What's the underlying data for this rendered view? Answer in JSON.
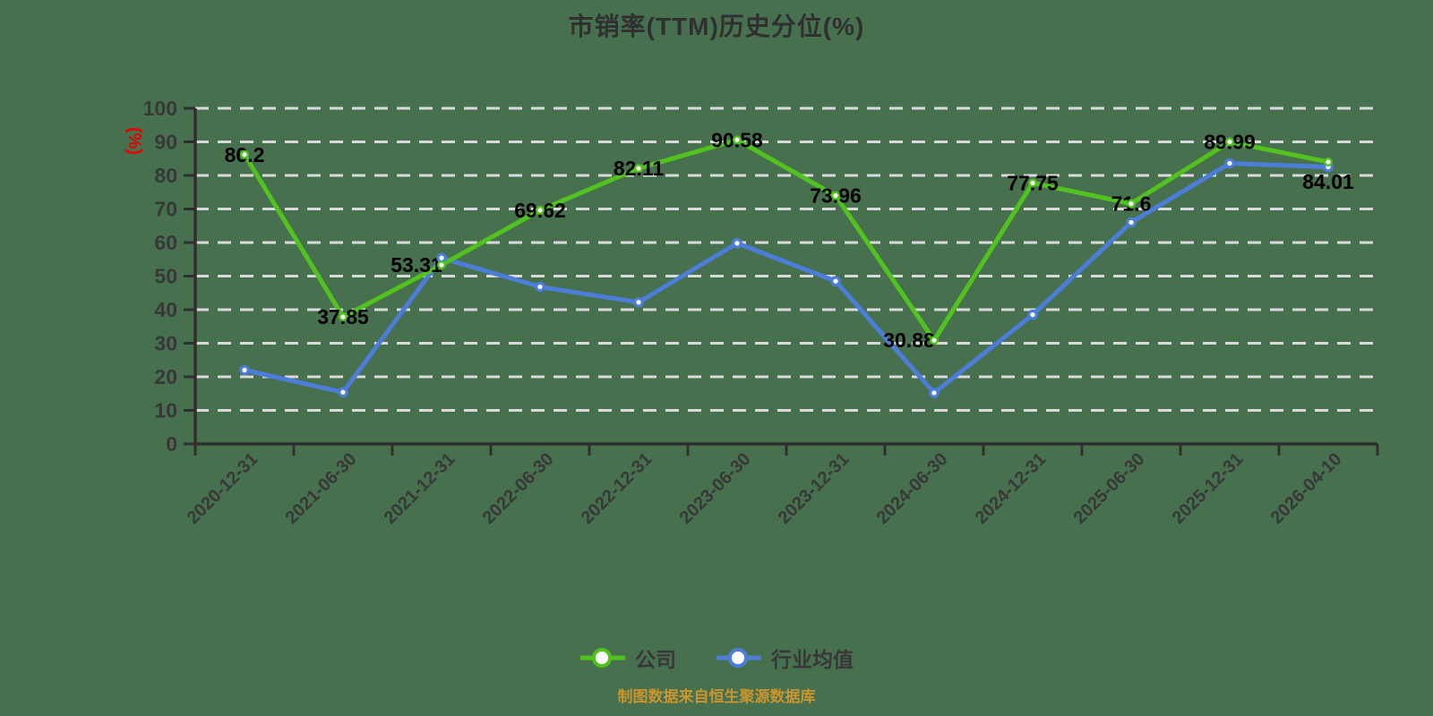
{
  "footer": "制图数据来自恒生聚源数据库",
  "colors": {
    "background": "#47704e",
    "grid": "#dadada",
    "axis": "#2f2f2f",
    "tick_label": "#383838",
    "data_label": "#000000",
    "title": "#303030",
    "unit_label": "#e60000",
    "footer": "#c9952f",
    "company": "#52c21f",
    "industry": "#4c7ed9",
    "marker_fill": "#ffffff"
  },
  "legend": {
    "position": "bottom",
    "items": [
      {
        "label": "公司",
        "color": "#52c21f"
      },
      {
        "label": "行业均值",
        "color": "#4c7ed9"
      }
    ]
  },
  "chart_data": {
    "type": "line",
    "title": "市销率(TTM)历史分位(%)",
    "ylabel": "(%)",
    "xlabel": "",
    "ylim": [
      0,
      100
    ],
    "y_ticks": [
      0,
      10,
      20,
      30,
      40,
      50,
      60,
      70,
      80,
      90,
      100
    ],
    "grid": "horizontal dashed",
    "legend_position": "bottom",
    "categories": [
      "2020-12-31",
      "2021-06-30",
      "2021-12-31",
      "2022-06-30",
      "2022-12-31",
      "2023-06-30",
      "2023-12-31",
      "2024-06-30",
      "2024-12-31",
      "2025-06-30",
      "2025-12-31",
      "2026-04-10"
    ],
    "series": [
      {
        "name": "公司",
        "color": "#52c21f",
        "values": [
          86.2,
          37.85,
          53.31,
          69.62,
          82.11,
          90.58,
          73.96,
          30.88,
          77.75,
          71.6,
          89.99,
          84.01
        ],
        "labels": [
          "86.2",
          "37.85",
          "53.31",
          "69.62",
          "82.11",
          "90.58",
          "73.96",
          "30.88",
          "77.75",
          "71.6",
          "89.99",
          "84.01"
        ],
        "show_labels": true,
        "label_adjust": {
          "2": "left",
          "7": "left",
          "11": "below"
        }
      },
      {
        "name": "行业均值",
        "color": "#4c7ed9",
        "values": [
          22.0,
          15.4,
          55.4,
          46.8,
          42.2,
          59.8,
          48.5,
          15.2,
          38.5,
          66.0,
          83.6,
          82.5
        ],
        "show_labels": false
      }
    ]
  }
}
